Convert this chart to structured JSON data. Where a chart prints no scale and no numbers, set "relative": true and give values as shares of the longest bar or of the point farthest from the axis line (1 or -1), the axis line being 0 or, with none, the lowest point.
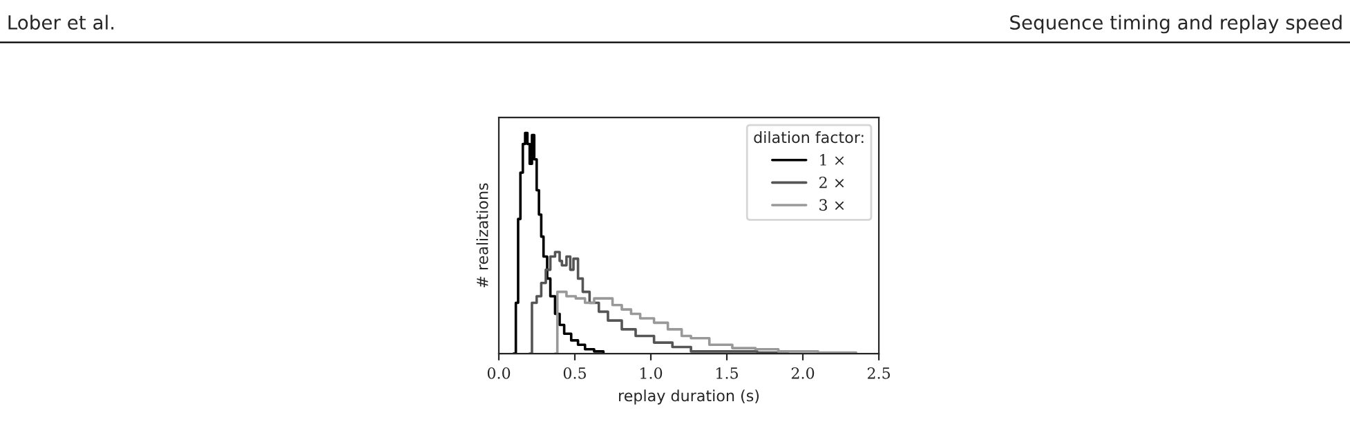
{
  "chart_data": {
    "type": "step",
    "relative": true,
    "xlabel": "replay duration (s)",
    "ylabel": "# realizations",
    "legend_title": "dilation factor:",
    "legend": "top right",
    "grid": false,
    "tick_labels": "x",
    "xlim": [
      0,
      2.5
    ],
    "xticks": [
      {
        "value": 0,
        "label": "0.0"
      },
      {
        "value": 0.5,
        "label": "0.5"
      },
      {
        "value": 1,
        "label": "1.0"
      },
      {
        "value": 1.5,
        "label": "1.5"
      },
      {
        "value": 2,
        "label": "2.0"
      },
      {
        "value": 2.5,
        "label": "2.5"
      }
    ],
    "annotations": [
      "Lober et al.",
      "Sequence timing and replay speed"
    ],
    "series": [
      {
        "name": "1 ×",
        "color": "#000000",
        "x": [
          0.097,
          0.112,
          0.127,
          0.142,
          0.158,
          0.173,
          0.188,
          0.203,
          0.218,
          0.233,
          0.249,
          0.264,
          0.279,
          0.294,
          0.318,
          0.339,
          0.37,
          0.4,
          0.43,
          0.476,
          0.521,
          0.567,
          0.627,
          0.688
        ],
        "values": [
          0,
          0.23,
          0.61,
          0.82,
          0.95,
          1.0,
          0.95,
          0.86,
          0.99,
          0.88,
          0.74,
          0.63,
          0.53,
          0.44,
          0.34,
          0.26,
          0.18,
          0.13,
          0.09,
          0.06,
          0.04,
          0.02,
          0.01,
          0
        ]
      },
      {
        "name": "2 ×",
        "color": "#555555",
        "x": [
          0.203,
          0.218,
          0.249,
          0.279,
          0.309,
          0.339,
          0.37,
          0.4,
          0.415,
          0.445,
          0.47,
          0.491,
          0.521,
          0.552,
          0.597,
          0.658,
          0.718,
          0.809,
          0.9,
          1.021,
          1.142,
          1.264,
          1.45,
          1.7,
          1.9
        ],
        "values": [
          0,
          0.23,
          0.26,
          0.32,
          0.38,
          0.44,
          0.46,
          0.42,
          0.4,
          0.44,
          0.38,
          0.43,
          0.34,
          0.28,
          0.23,
          0.19,
          0.15,
          0.11,
          0.08,
          0.05,
          0.03,
          0.01,
          0.01,
          0.005,
          0
        ]
      },
      {
        "name": "3 ×",
        "color": "#999999",
        "x": [
          0.37,
          0.385,
          0.415,
          0.445,
          0.506,
          0.567,
          0.627,
          0.688,
          0.748,
          0.809,
          0.87,
          0.93,
          1.021,
          1.112,
          1.203,
          1.264,
          1.385,
          1.536,
          1.688,
          1.839,
          2.1,
          2.35
        ],
        "values": [
          0,
          0.28,
          0.28,
          0.26,
          0.25,
          0.23,
          0.25,
          0.25,
          0.22,
          0.2,
          0.18,
          0.16,
          0.14,
          0.11,
          0.08,
          0.07,
          0.04,
          0.025,
          0.02,
          0.01,
          0.005,
          0
        ]
      }
    ]
  }
}
